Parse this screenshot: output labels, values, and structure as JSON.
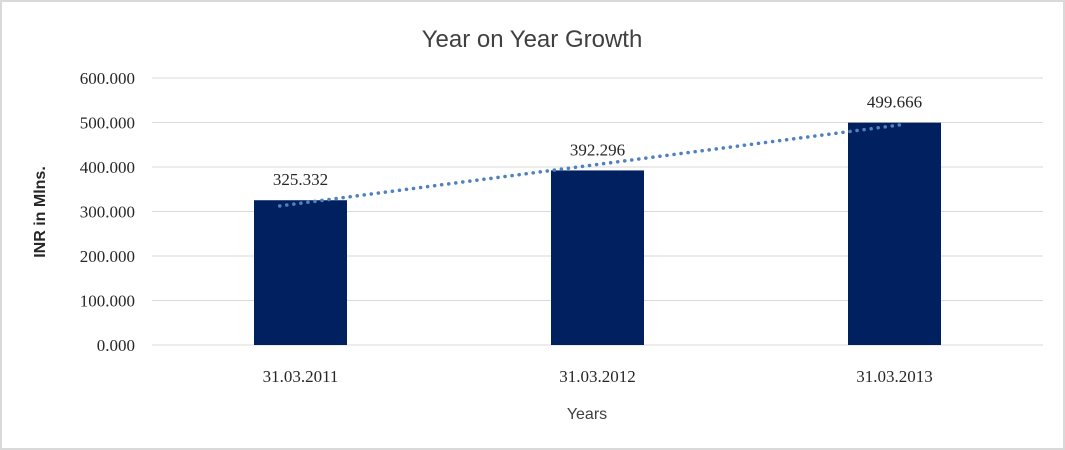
{
  "frame": {
    "background": "#ffffff",
    "border_color": "#d9d9d9"
  },
  "chart_data": {
    "type": "bar",
    "title": "Year on Year Growth",
    "xlabel": "Years",
    "ylabel": "INR in Mlns.",
    "categories": [
      "31.03.2011",
      "31.03.2012",
      "31.03.2013"
    ],
    "values": [
      325.332,
      392.296,
      499.666
    ],
    "data_labels": [
      "325.332",
      "392.296",
      "499.666"
    ],
    "y_ticks": [
      "0.000",
      "100.000",
      "200.000",
      "300.000",
      "400.000",
      "500.000",
      "600.000"
    ],
    "ylim": [
      0,
      600
    ],
    "grid": "horizontal",
    "legend": "none",
    "bar_color": "#002060",
    "gridline_color": "#d9d9d9",
    "text_color": "#262626",
    "title_color": "#404040",
    "trendline": {
      "type": "linear",
      "style": "dotted",
      "color": "#4f81bd"
    }
  }
}
